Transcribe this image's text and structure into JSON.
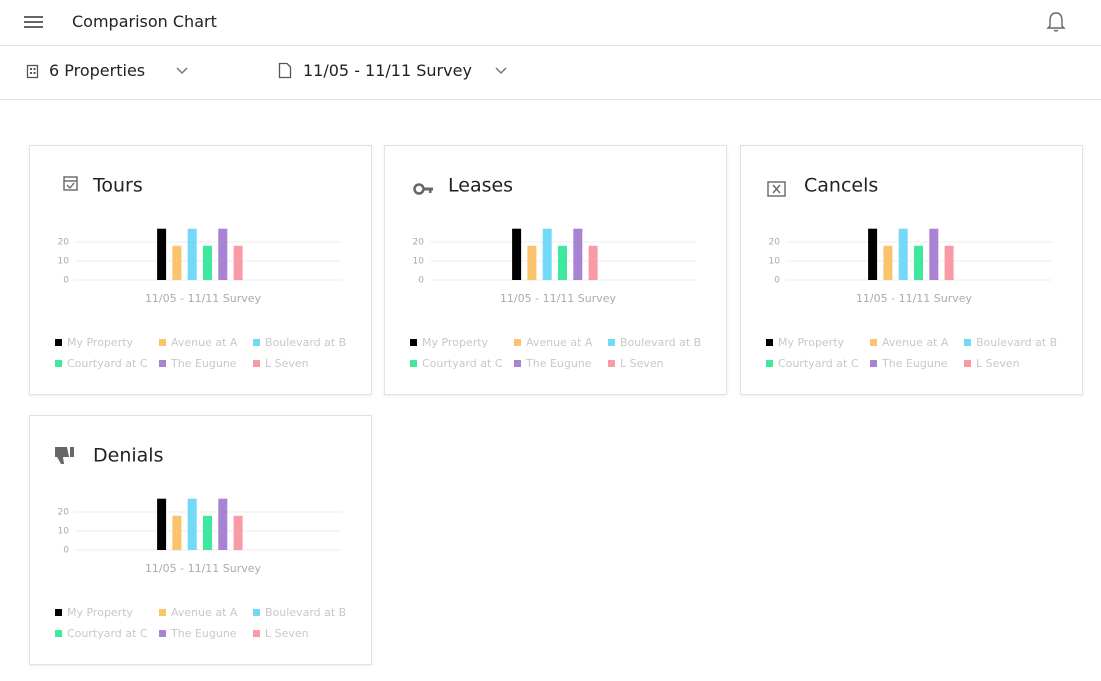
{
  "header": {
    "title": "Comparison Chart"
  },
  "filters": {
    "properties": "6 Properties",
    "survey": "11/05 - 11/11 Survey"
  },
  "chart_data": [
    {
      "type": "bar",
      "title": "Tours",
      "categories": [
        "11/05 - 11/11 Survey"
      ],
      "ylim": [
        0,
        30
      ],
      "yticks": [
        0,
        10,
        20
      ],
      "grid": true,
      "series": [
        {
          "name": "My Property",
          "color": "#000000",
          "values": [
            27
          ]
        },
        {
          "name": "Avenue at A",
          "color": "#fbc46c",
          "values": [
            18
          ]
        },
        {
          "name": "Boulevard at B",
          "color": "#72d9f8",
          "values": [
            27
          ]
        },
        {
          "name": "Courtyard at C",
          "color": "#3ee89c",
          "values": [
            18
          ]
        },
        {
          "name": "The Eugune",
          "color": "#a882d3",
          "values": [
            27
          ]
        },
        {
          "name": "L Seven",
          "color": "#f99ba7",
          "values": [
            18
          ]
        }
      ]
    },
    {
      "type": "bar",
      "title": "Leases",
      "categories": [
        "11/05 - 11/11 Survey"
      ],
      "ylim": [
        0,
        30
      ],
      "yticks": [
        0,
        10,
        20
      ],
      "grid": true,
      "series": [
        {
          "name": "My Property",
          "color": "#000000",
          "values": [
            27
          ]
        },
        {
          "name": "Avenue at A",
          "color": "#fbc46c",
          "values": [
            18
          ]
        },
        {
          "name": "Boulevard at B",
          "color": "#72d9f8",
          "values": [
            27
          ]
        },
        {
          "name": "Courtyard at C",
          "color": "#3ee89c",
          "values": [
            18
          ]
        },
        {
          "name": "The Eugune",
          "color": "#a882d3",
          "values": [
            27
          ]
        },
        {
          "name": "L Seven",
          "color": "#f99ba7",
          "values": [
            18
          ]
        }
      ]
    },
    {
      "type": "bar",
      "title": "Cancels",
      "categories": [
        "11/05 - 11/11 Survey"
      ],
      "ylim": [
        0,
        30
      ],
      "yticks": [
        0,
        10,
        20
      ],
      "grid": true,
      "series": [
        {
          "name": "My Property",
          "color": "#000000",
          "values": [
            27
          ]
        },
        {
          "name": "Avenue at A",
          "color": "#fbc46c",
          "values": [
            18
          ]
        },
        {
          "name": "Boulevard at B",
          "color": "#72d9f8",
          "values": [
            27
          ]
        },
        {
          "name": "Courtyard at C",
          "color": "#3ee89c",
          "values": [
            18
          ]
        },
        {
          "name": "The Eugune",
          "color": "#a882d3",
          "values": [
            27
          ]
        },
        {
          "name": "L Seven",
          "color": "#f99ba7",
          "values": [
            18
          ]
        }
      ]
    },
    {
      "type": "bar",
      "title": "Denials",
      "categories": [
        "11/05 - 11/11 Survey"
      ],
      "ylim": [
        0,
        30
      ],
      "yticks": [
        0,
        10,
        20
      ],
      "grid": true,
      "series": [
        {
          "name": "My Property",
          "color": "#000000",
          "values": [
            27
          ]
        },
        {
          "name": "Avenue at A",
          "color": "#fbc46c",
          "values": [
            18
          ]
        },
        {
          "name": "Boulevard at B",
          "color": "#72d9f8",
          "values": [
            27
          ]
        },
        {
          "name": "Courtyard at C",
          "color": "#3ee89c",
          "values": [
            18
          ]
        },
        {
          "name": "The Eugune",
          "color": "#a882d3",
          "values": [
            27
          ]
        },
        {
          "name": "L Seven",
          "color": "#f99ba7",
          "values": [
            18
          ]
        }
      ]
    }
  ]
}
